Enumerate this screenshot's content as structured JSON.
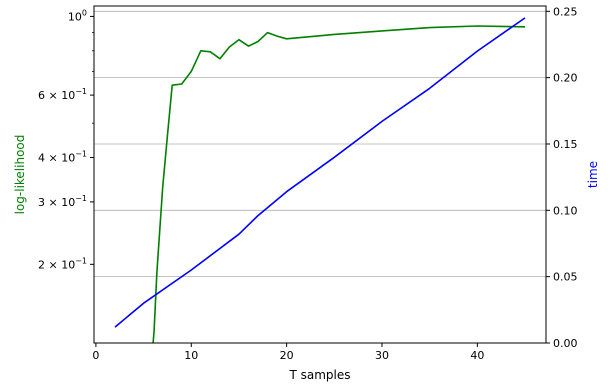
{
  "chart_data": {
    "type": "line",
    "xlabel": "T samples",
    "ylabel_left": "log-likelihood",
    "ylabel_right": "time",
    "colors": {
      "left": "#008000",
      "right": "#0000ff",
      "grid": "#b0b0b0",
      "axis": "#000000"
    },
    "xlim": [
      -0.2,
      47.2
    ],
    "x_ticks": [
      0,
      10,
      20,
      30,
      40
    ],
    "y_left": {
      "scale": "log",
      "lim": [
        0.12,
        1.07
      ],
      "ticks": [
        {
          "value": 1.0,
          "base": "10",
          "exp": "0"
        },
        {
          "value": 0.6,
          "base": "6 × 10",
          "exp": "−1"
        },
        {
          "value": 0.4,
          "base": "4 × 10",
          "exp": "−1"
        },
        {
          "value": 0.3,
          "base": "3 × 10",
          "exp": "−1"
        },
        {
          "value": 0.2,
          "base": "2 × 10",
          "exp": "−1"
        }
      ],
      "minor_ticks": [
        0.5,
        0.7,
        0.8,
        0.9
      ]
    },
    "y_right": {
      "scale": "linear",
      "lim": [
        0.0,
        0.254
      ],
      "ticks": [
        0.0,
        0.05,
        0.1,
        0.15,
        0.2,
        0.25
      ],
      "tick_labels": [
        "0.00",
        "0.05",
        "0.10",
        "0.15",
        "0.20",
        "0.25"
      ],
      "grid": true
    },
    "series": [
      {
        "axis": "left",
        "color": "#008000",
        "x": [
          6,
          6.1,
          6.4,
          7,
          7.5,
          8,
          9,
          10,
          11,
          12,
          13,
          14,
          15,
          16,
          17,
          18,
          19,
          20,
          25,
          30,
          35,
          40,
          45
        ],
        "y": [
          0.12,
          0.13,
          0.19,
          0.33,
          0.46,
          0.64,
          0.645,
          0.7,
          0.8,
          0.795,
          0.76,
          0.82,
          0.86,
          0.825,
          0.85,
          0.9,
          0.88,
          0.865,
          0.89,
          0.91,
          0.93,
          0.94,
          0.935
        ]
      },
      {
        "axis": "right",
        "color": "#0000ff",
        "x": [
          2,
          5,
          10,
          15,
          17,
          20,
          25,
          30,
          35,
          40,
          45
        ],
        "y": [
          0.012,
          0.03,
          0.055,
          0.082,
          0.096,
          0.114,
          0.14,
          0.167,
          0.192,
          0.22,
          0.245
        ]
      }
    ]
  }
}
